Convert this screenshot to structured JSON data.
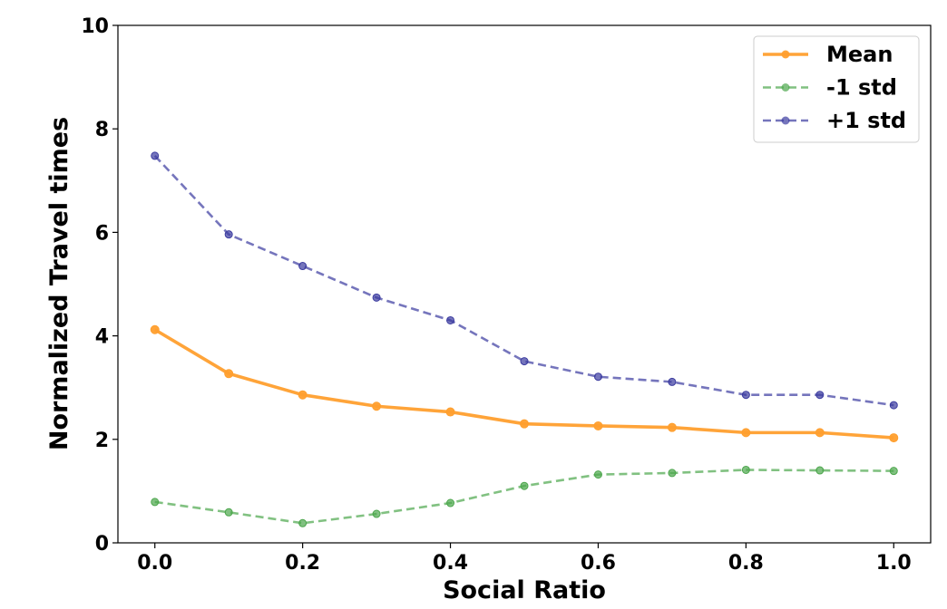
{
  "chart_data": {
    "type": "line",
    "title": "",
    "xlabel": "Social Ratio",
    "ylabel": "Normalized Travel times",
    "xlim": [
      -0.05,
      1.05
    ],
    "ylim": [
      0,
      10
    ],
    "x_ticks": [
      0.0,
      0.2,
      0.4,
      0.6,
      0.8,
      1.0
    ],
    "x_tick_labels": [
      "0.0",
      "0.2",
      "0.4",
      "0.6",
      "0.8",
      "1.0"
    ],
    "y_ticks": [
      0,
      2,
      4,
      6,
      8,
      10
    ],
    "y_tick_labels": [
      "0",
      "2",
      "4",
      "6",
      "8",
      "10"
    ],
    "x": [
      0.0,
      0.1,
      0.2,
      0.3,
      0.4,
      0.5,
      0.6,
      0.7,
      0.8,
      0.9,
      1.0
    ],
    "grid": false,
    "legend_position": "top-right",
    "series": [
      {
        "name": "Mean",
        "values": [
          4.12,
          3.27,
          2.86,
          2.64,
          2.53,
          2.3,
          2.26,
          2.23,
          2.13,
          2.13,
          2.03
        ],
        "color": "#ff9f2e",
        "style": "solid"
      },
      {
        "name": "-1 std",
        "values": [
          0.79,
          0.59,
          0.38,
          0.56,
          0.77,
          1.1,
          1.32,
          1.35,
          1.41,
          1.4,
          1.39
        ],
        "color": "#4ca64c",
        "style": "dashed"
      },
      {
        "name": "+1 std",
        "values": [
          7.48,
          5.96,
          5.35,
          4.74,
          4.3,
          3.51,
          3.21,
          3.11,
          2.86,
          2.86,
          2.66
        ],
        "color": "#3b3b9f",
        "style": "dashed"
      }
    ]
  }
}
